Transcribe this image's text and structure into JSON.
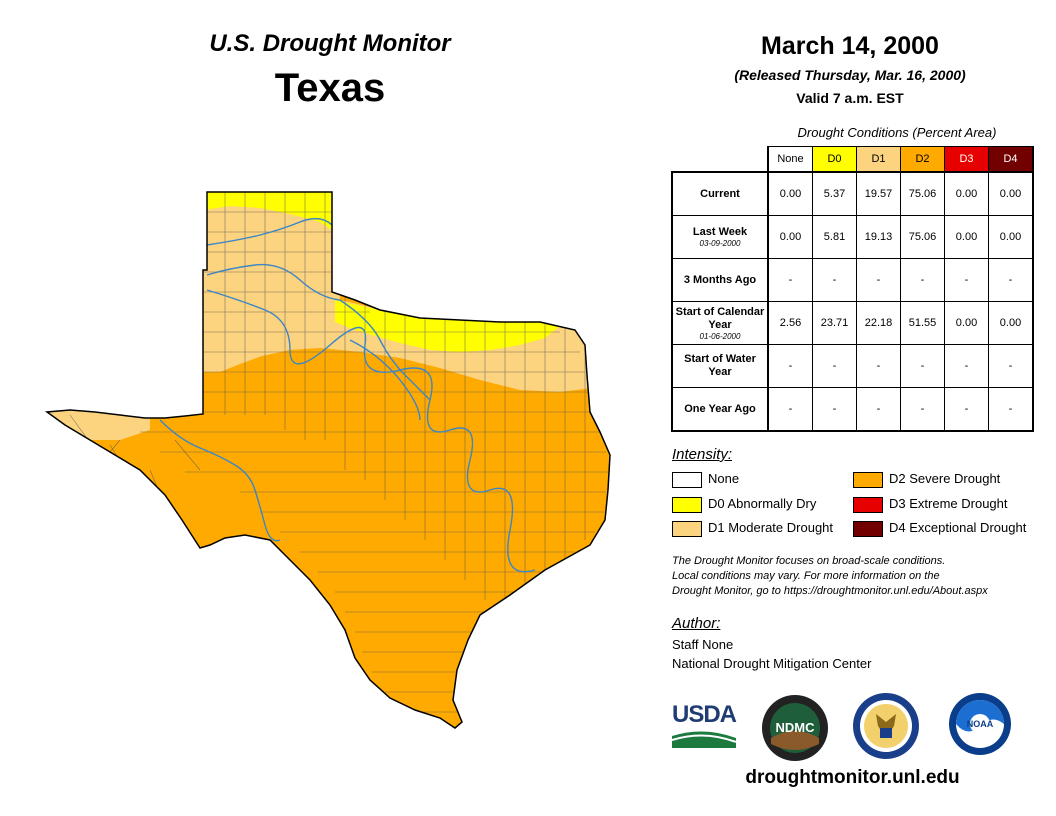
{
  "header": {
    "subtitle": "U.S. Drought Monitor",
    "title": "Texas",
    "date": "March 14, 2000",
    "released": "(Released Thursday, Mar. 16, 2000)",
    "valid": "Valid 7 a.m. EST"
  },
  "conditions": {
    "caption": "Drought Conditions (Percent Area)",
    "columns": [
      "None",
      "D0",
      "D1",
      "D2",
      "D3",
      "D4"
    ],
    "column_colors": [
      "#ffffff",
      "#ffff00",
      "#fcd37f",
      "#ffaa00",
      "#e60000",
      "#730000"
    ],
    "rows": [
      {
        "label": "Current",
        "sublabel": "",
        "values": [
          "0.00",
          "5.37",
          "19.57",
          "75.06",
          "0.00",
          "0.00"
        ]
      },
      {
        "label": "Last Week",
        "sublabel": "03-09-2000",
        "values": [
          "0.00",
          "5.81",
          "19.13",
          "75.06",
          "0.00",
          "0.00"
        ]
      },
      {
        "label": "3 Months Ago",
        "sublabel": "",
        "values": [
          "-",
          "-",
          "-",
          "-",
          "-",
          "-"
        ]
      },
      {
        "label": "Start of Calendar Year",
        "sublabel": "01-06-2000",
        "values": [
          "2.56",
          "23.71",
          "22.18",
          "51.55",
          "0.00",
          "0.00"
        ]
      },
      {
        "label": "Start of Water Year",
        "sublabel": "",
        "values": [
          "-",
          "-",
          "-",
          "-",
          "-",
          "-"
        ]
      },
      {
        "label": "One Year Ago",
        "sublabel": "",
        "values": [
          "-",
          "-",
          "-",
          "-",
          "-",
          "-"
        ]
      }
    ]
  },
  "legend": {
    "title": "Intensity:",
    "items": [
      {
        "label": "None",
        "color": "#ffffff"
      },
      {
        "label": "D0 Abnormally Dry",
        "color": "#ffff00"
      },
      {
        "label": "D1 Moderate Drought",
        "color": "#fcd37f"
      },
      {
        "label": "D2 Severe Drought",
        "color": "#ffaa00"
      },
      {
        "label": "D3 Extreme Drought",
        "color": "#e60000"
      },
      {
        "label": "D4 Exceptional Drought",
        "color": "#730000"
      }
    ]
  },
  "note": {
    "line1": "The Drought Monitor focuses on broad-scale conditions.",
    "line2": "Local conditions may vary. For more information on the",
    "line3": "Drought Monitor, go to https://droughtmonitor.unl.edu/About.aspx"
  },
  "author": {
    "title": "Author:",
    "name": "Staff None",
    "org": "National Drought Mitigation Center"
  },
  "logos": {
    "usda": "USDA",
    "ndmc": "NDMC",
    "noaa": "NOAA"
  },
  "site": "droughtmonitor.unl.edu"
}
